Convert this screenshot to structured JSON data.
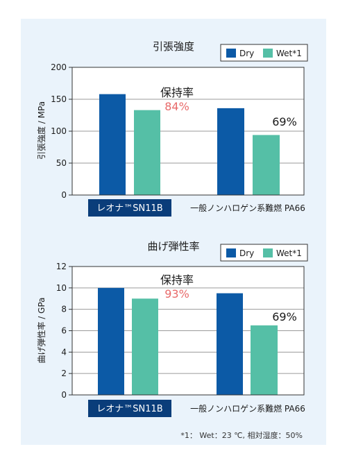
{
  "colors": {
    "dry": "#0c5aa6",
    "wet": "#55bfa6",
    "retention_red": "#e86a6a",
    "badge": "#0a3d7a"
  },
  "charts": [
    {
      "title": "引張強度",
      "ylabel": "引張強度 / MPa",
      "legend": [
        "Dry",
        "Wet*1"
      ],
      "retention_label": "保持率",
      "retention_values": [
        "84%",
        "69%"
      ],
      "categories": [
        "レオナ™SN11B",
        "一般ノンハロゲン系難燃 PA66"
      ]
    },
    {
      "title": "曲げ弾性率",
      "ylabel": "曲げ弾性率 / GPa",
      "legend": [
        "Dry",
        "Wet*1"
      ],
      "retention_label": "保持率",
      "retention_values": [
        "93%",
        "69%"
      ],
      "categories": [
        "レオナ™SN11B",
        "一般ノンハロゲン系難燃 PA66"
      ]
    }
  ],
  "footnote": "*1： Wet：23 ℃, 相対湿度：50%",
  "chart_data": [
    {
      "type": "bar",
      "title": "引張強度",
      "ylabel": "引張強度 / MPa",
      "categories": [
        "レオナ™SN11B",
        "一般ノンハロゲン系難燃 PA66"
      ],
      "series": [
        {
          "name": "Dry",
          "values": [
            158,
            136
          ]
        },
        {
          "name": "Wet*1",
          "values": [
            133,
            94
          ]
        }
      ],
      "ylim": [
        0,
        200
      ],
      "yticks": [
        0,
        50,
        100,
        150,
        200
      ],
      "legend_position": "top-right",
      "grid": true
    },
    {
      "type": "bar",
      "title": "曲げ弾性率",
      "ylabel": "曲げ弾性率 / GPa",
      "categories": [
        "レオナ™SN11B",
        "一般ノンハロゲン系難燃 PA66"
      ],
      "series": [
        {
          "name": "Dry",
          "values": [
            10,
            9.5
          ]
        },
        {
          "name": "Wet*1",
          "values": [
            9.0,
            6.5
          ]
        }
      ],
      "ylim": [
        0,
        12
      ],
      "yticks": [
        0,
        2,
        4,
        6,
        8,
        10,
        12
      ],
      "legend_position": "top-right",
      "grid": true
    }
  ]
}
